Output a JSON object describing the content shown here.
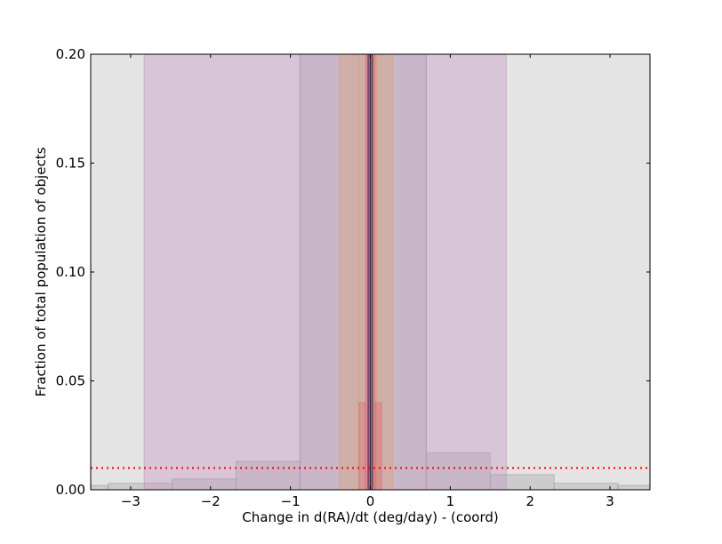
{
  "chart_data": {
    "type": "area",
    "title": "",
    "xlabel": "Change in d(RA)/dt (deg/day) - (coord)",
    "ylabel": "Fraction of total population of objects",
    "xlim": [
      -3.5,
      3.5
    ],
    "ylim": [
      0.0,
      0.2
    ],
    "xticks": [
      -3,
      -2,
      -1,
      0,
      1,
      2,
      3
    ],
    "xtick_labels": [
      "−3",
      "−2",
      "−1",
      "0",
      "1",
      "2",
      "3"
    ],
    "yticks": [
      0.0,
      0.05,
      0.1,
      0.15,
      0.2
    ],
    "ytick_labels": [
      "0.00",
      "0.05",
      "0.10",
      "0.15",
      "0.20"
    ],
    "grid": false,
    "reference_line": {
      "y": 0.01,
      "color": "#ff0000",
      "style": "dotted"
    },
    "series": [
      {
        "color": "#a0a0a0",
        "edges": [
          -3.5,
          -3.28,
          -2.48,
          -1.68,
          -0.88,
          0.7,
          1.5,
          2.3,
          3.1,
          3.5
        ],
        "values": [
          0.002,
          0.003,
          0.005,
          0.013,
          0.2,
          0.017,
          0.007,
          0.003,
          0.002
        ]
      },
      {
        "color": "#c090c0",
        "edges": [
          -2.83,
          -0.88,
          0.7,
          1.7
        ],
        "values": [
          0.2,
          0.2,
          0.2
        ]
      },
      {
        "color": "#e0a070",
        "edges": [
          -0.39,
          -0.15,
          0.08,
          0.28
        ],
        "values": [
          0.2,
          0.2,
          0.2
        ]
      },
      {
        "color": "#e06070",
        "edges": [
          -0.14,
          -0.06,
          -0.02,
          0.02,
          0.06,
          0.14
        ],
        "values": [
          0.04,
          0.2,
          0.2,
          0.2,
          0.04
        ]
      },
      {
        "color": "#202040",
        "edges": [
          -0.03,
          0.0,
          0.03
        ],
        "values": [
          0.2,
          0.2
        ]
      }
    ]
  }
}
